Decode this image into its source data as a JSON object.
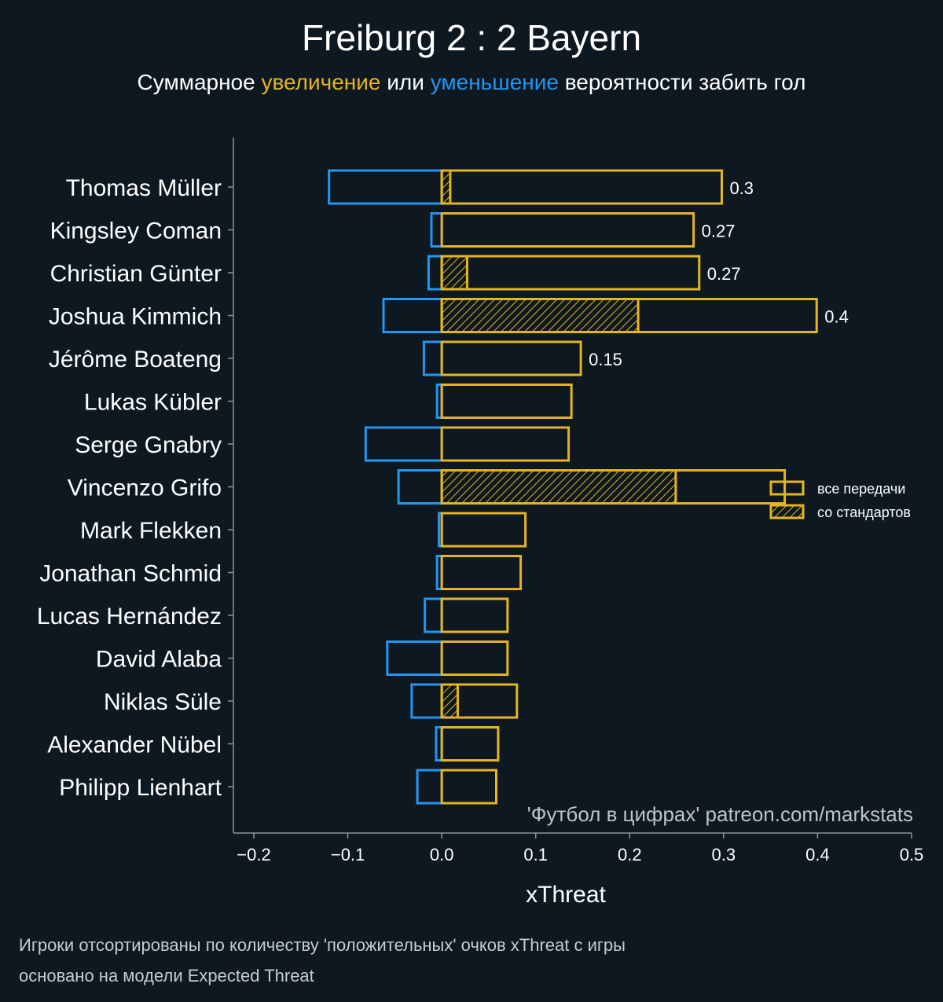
{
  "colors": {
    "background": "#0d1820",
    "positive": "#e6b422",
    "negative": "#2196f3",
    "axis": "#8a949b",
    "text": "#ffffff"
  },
  "header": {
    "title": "Freiburg 2 : 2 Bayern",
    "subtitle_parts": [
      {
        "text": "Суммарное ",
        "role": "plain"
      },
      {
        "text": "увеличение",
        "role": "positive"
      },
      {
        "text": " или ",
        "role": "plain"
      },
      {
        "text": "уменьшение",
        "role": "negative"
      },
      {
        "text": " вероятности забить гол",
        "role": "plain"
      }
    ]
  },
  "chart_data": {
    "type": "bar",
    "orientation": "horizontal",
    "xlabel": "xThreat",
    "xlim": [
      -0.22,
      0.5
    ],
    "xticks": [
      -0.2,
      -0.1,
      0.0,
      0.1,
      0.2,
      0.3,
      0.4,
      0.5
    ],
    "xtick_labels": [
      "−0.2",
      "−0.1",
      "0.0",
      "0.1",
      "0.2",
      "0.3",
      "0.4",
      "0.5"
    ],
    "categories": [
      "Thomas Müller",
      "Kingsley Coman",
      "Christian Günter",
      "Joshua Kimmich",
      "Jérôme Boateng",
      "Lukas Kübler",
      "Serge Gnabry",
      "Vincenzo Grifo",
      "Mark Flekken",
      "Jonathan Schmid",
      "Lucas Hernández",
      "David Alaba",
      "Niklas Süle",
      "Alexander Nübel",
      "Philipp Lienhart"
    ],
    "series": [
      {
        "name": "все передачи (положительные)",
        "values": [
          0.298,
          0.268,
          0.274,
          0.399,
          0.148,
          0.138,
          0.135,
          0.365,
          0.089,
          0.084,
          0.07,
          0.07,
          0.08,
          0.06,
          0.058
        ]
      },
      {
        "name": "все передачи (отрицательные)",
        "values": [
          -0.12,
          -0.011,
          -0.014,
          -0.062,
          -0.019,
          -0.005,
          -0.081,
          -0.046,
          -0.003,
          -0.005,
          -0.018,
          -0.058,
          -0.032,
          -0.006,
          -0.026
        ]
      },
      {
        "name": "со стандартов",
        "values": [
          0.009,
          0,
          0.027,
          0.209,
          0,
          0,
          0,
          0.249,
          0,
          0,
          0,
          0,
          0.017,
          0,
          0
        ]
      }
    ],
    "data_labels": [
      "0.3",
      "0.27",
      "0.27",
      "0.4",
      "0.15",
      "",
      "",
      "",
      "",
      "",
      "",
      "",
      "",
      "",
      ""
    ],
    "legend": {
      "position": "right",
      "entries": [
        "все передачи",
        "со стандартов"
      ]
    },
    "watermark": "'Футбол в цифрах' patreon.com/markstats"
  },
  "footer": {
    "line1": "Игроки отсортированы по количеству 'положительных' очков xThreat с игры",
    "line2": "основано на модели Expected Threat"
  }
}
